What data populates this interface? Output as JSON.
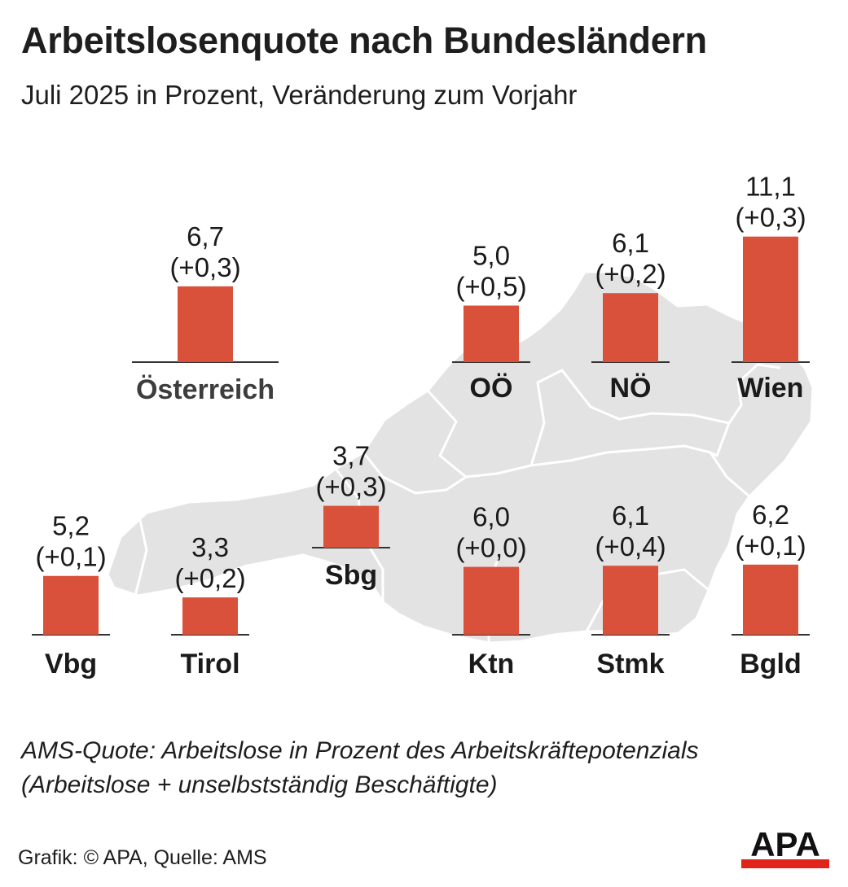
{
  "header": {
    "title": "Arbeitslosenquote nach Bundesländern",
    "subtitle": "Juli 2025 in Prozent, Veränderung zum Vorjahr"
  },
  "colors": {
    "bar": "#d9513a",
    "map": "#e3e3e3",
    "map_border": "#ffffff",
    "baseline": "#333333",
    "logo_red": "#e2231a"
  },
  "chart_data": {
    "type": "bar",
    "unit": "Prozent",
    "ylim": [
      0,
      11.1
    ],
    "categories": [
      "Österreich",
      "OÖ",
      "NÖ",
      "Wien",
      "Vbg",
      "Tirol",
      "Sbg",
      "Ktn",
      "Stmk",
      "Bgld"
    ],
    "values": [
      6.7,
      5.0,
      6.1,
      11.1,
      5.2,
      3.3,
      3.7,
      6.0,
      6.1,
      6.2
    ],
    "value_labels": [
      "6,7",
      "5,0",
      "6,1",
      "11,1",
      "5,2",
      "3,3",
      "3,7",
      "6,0",
      "6,1",
      "6,2"
    ],
    "change_labels": [
      "(+0,3)",
      "(+0,5)",
      "(+0,2)",
      "(+0,3)",
      "(+0,1)",
      "(+0,2)",
      "(+0,3)",
      "(+0,0)",
      "(+0,4)",
      "(+0,1)"
    ],
    "changes": [
      0.3,
      0.5,
      0.2,
      0.3,
      0.1,
      0.2,
      0.3,
      0.0,
      0.4,
      0.1
    ]
  },
  "footnote": {
    "line1": "AMS-Quote: Arbeitslose in Prozent des Arbeitskräftepotenzials",
    "line2": "(Arbeitslose + unselbstständig Beschäftigte)"
  },
  "credit": "Grafik: © APA, Quelle: AMS",
  "logo": {
    "text": "APA",
    "icon": "apa-logo"
  }
}
